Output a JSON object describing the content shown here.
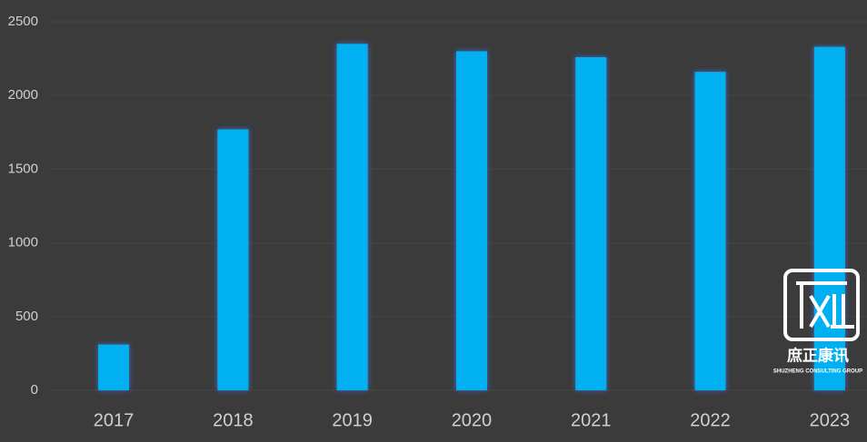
{
  "chart_data": {
    "type": "bar",
    "categories": [
      "2017",
      "2018",
      "2019",
      "2020",
      "2021",
      "2022",
      "2023"
    ],
    "values": [
      310,
      1770,
      2350,
      2300,
      2260,
      2160,
      2330
    ],
    "color": "#00b0f0",
    "ylim": [
      0,
      2500
    ],
    "yticks": [
      0,
      500,
      1000,
      1500,
      2000,
      2500
    ],
    "grid": true
  },
  "watermark": {
    "name": "庶正康讯",
    "tagline": "SHUZHENG CONSULTING GROUP"
  }
}
